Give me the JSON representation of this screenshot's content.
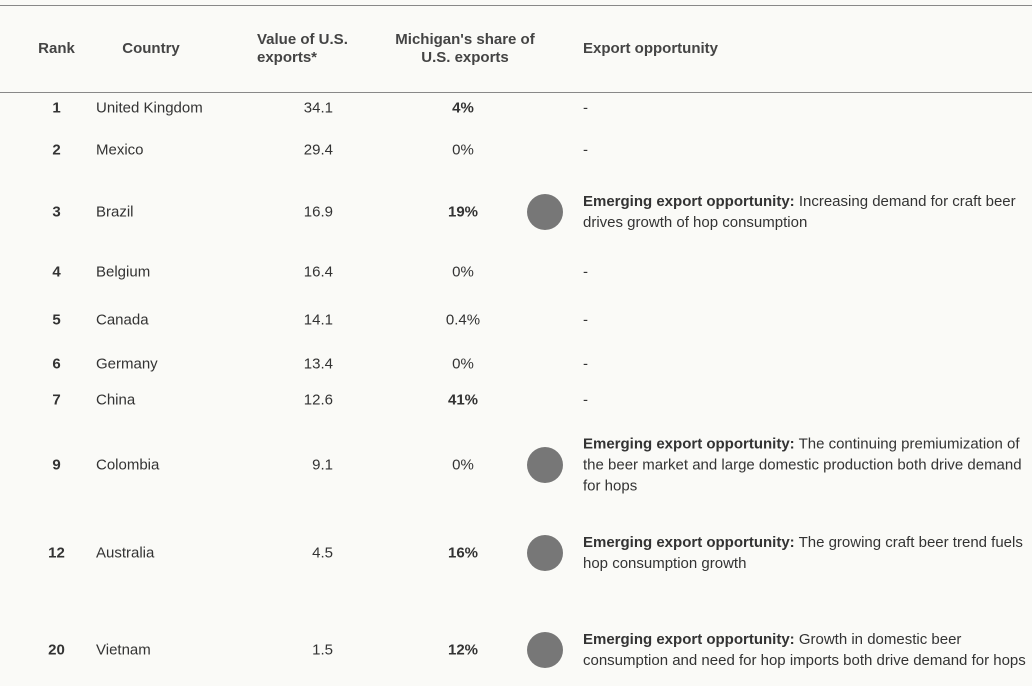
{
  "table": {
    "header": [
      "Rank",
      "Country",
      "Value of U.S. exports*",
      "Michigan's share of U.S. exports",
      "Export opportunity"
    ],
    "rows": [
      [
        "1",
        "United Kingdom",
        "34.1",
        "4%",
        "-"
      ],
      [
        "2",
        "Mexico",
        "29.4",
        "0%",
        "-"
      ],
      [
        "3",
        "Brazil",
        "16.9",
        "19%",
        {
          "label": "Emerging export opportunity:",
          "text": "Increasing demand for craft beer drives growth of hop consumption"
        }
      ],
      [
        "4",
        "Belgium",
        "16.4",
        "0%",
        "-"
      ],
      [
        "5",
        "Canada",
        "14.1",
        "0.4%",
        "-"
      ],
      [
        "6",
        "Germany",
        "13.4",
        "0%",
        "-"
      ],
      [
        "7",
        "China",
        "12.6",
        "41%",
        "-"
      ],
      [
        "9",
        "Colombia",
        "9.1",
        "0%",
        {
          "label": "Emerging export opportunity:",
          "text": "The continuing premiumization of the beer market and large domestic production both drive demand for hops"
        }
      ],
      [
        "12",
        "Australia",
        "4.5",
        "16%",
        {
          "label": "Emerging export opportunity:",
          "text": "The growing craft beer trend fuels hop consumption growth"
        }
      ],
      [
        "20",
        "Vietnam",
        "1.5",
        "12%",
        {
          "label": "Emerging export opportunity:",
          "text": "Growth in domestic beer consumption and need for hop imports both drive demand for hops"
        }
      ]
    ]
  }
}
